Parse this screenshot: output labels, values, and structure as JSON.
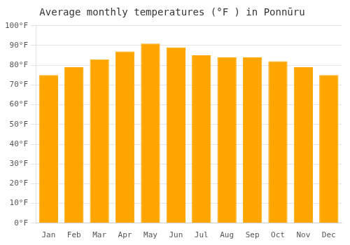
{
  "chart_data": {
    "type": "bar",
    "title": "Average monthly temperatures (°F ) in Ponnūru",
    "categories": [
      "Jan",
      "Feb",
      "Mar",
      "Apr",
      "May",
      "Jun",
      "Jul",
      "Aug",
      "Sep",
      "Oct",
      "Nov",
      "Dec"
    ],
    "values": [
      75,
      79,
      83,
      87,
      91,
      89,
      85,
      84,
      84,
      82,
      79,
      75
    ],
    "color": "#FFA500",
    "ylim": [
      0,
      100
    ],
    "yticks": [
      {
        "value": 0,
        "label": "0°F"
      },
      {
        "value": 10,
        "label": "10°F"
      },
      {
        "value": 20,
        "label": "20°F"
      },
      {
        "value": 30,
        "label": "30°F"
      },
      {
        "value": 40,
        "label": "40°F"
      },
      {
        "value": 50,
        "label": "50°F"
      },
      {
        "value": 60,
        "label": "60°F"
      },
      {
        "value": 70,
        "label": "70°F"
      },
      {
        "value": 80,
        "label": "80°F"
      },
      {
        "value": 90,
        "label": "90°F"
      },
      {
        "value": 100,
        "label": "100°F"
      }
    ],
    "grid": true
  }
}
